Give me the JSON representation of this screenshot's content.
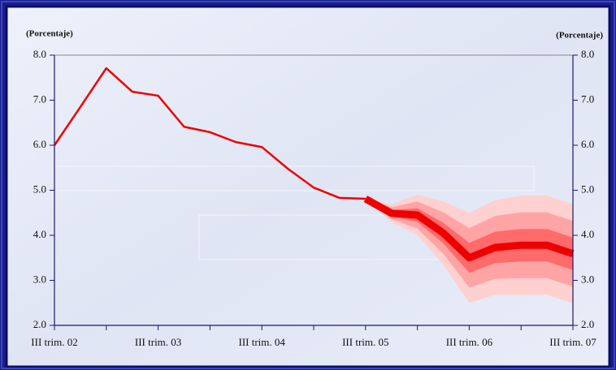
{
  "chart_data": {
    "type": "fan",
    "y_label": "(Porcentaje)",
    "y2_label": "(Porcentaje)",
    "categories": [
      "III trim. 02",
      null,
      null,
      null,
      "III trim. 03",
      null,
      null,
      null,
      "III trim. 04",
      null,
      null,
      null,
      "III trim. 05",
      null,
      null,
      null,
      "III trim. 06",
      null,
      null,
      null,
      "III trim. 07"
    ],
    "ylim": [
      2,
      8
    ],
    "yticks": [
      {
        "value": 2,
        "label": "2.0"
      },
      {
        "value": 3,
        "label": "3.0"
      },
      {
        "value": 4,
        "label": "4.0"
      },
      {
        "value": 5,
        "label": "5.0"
      },
      {
        "value": 6,
        "label": "6.0"
      },
      {
        "value": 7,
        "label": "7.0"
      },
      {
        "value": 8,
        "label": "8.0"
      }
    ],
    "y2lim": [
      2,
      8
    ],
    "y2ticks": [
      {
        "value": 2,
        "label": "2.0"
      },
      {
        "value": 3,
        "label": "3.0"
      },
      {
        "value": 4,
        "label": "4.0"
      },
      {
        "value": 5,
        "label": "5.0"
      },
      {
        "value": 6,
        "label": "6.0"
      },
      {
        "value": 7,
        "label": "7.0"
      },
      {
        "value": 8,
        "label": "8.0"
      }
    ],
    "line": {
      "color": "#ee0000",
      "forecast_start": 12,
      "values": [
        6.0,
        6.85,
        7.71,
        7.19,
        7.1,
        6.41,
        6.29,
        6.07,
        5.96,
        5.48,
        5.06,
        4.83,
        4.81,
        4.49,
        4.45,
        4.05,
        3.5,
        3.73,
        3.78,
        3.78,
        3.59
      ]
    },
    "fan": [
      {
        "color": "#ffd0d0",
        "lower": [
          null,
          null,
          null,
          null,
          null,
          null,
          null,
          null,
          null,
          null,
          null,
          null,
          4.81,
          4.29,
          4.0,
          3.35,
          2.5,
          2.68,
          2.68,
          2.68,
          2.49
        ],
        "upper": [
          null,
          null,
          null,
          null,
          null,
          null,
          null,
          null,
          null,
          null,
          null,
          null,
          4.81,
          4.69,
          4.9,
          4.75,
          4.5,
          4.78,
          4.88,
          4.88,
          4.69
        ]
      },
      {
        "color": "#ffa4a4",
        "lower": [
          null,
          null,
          null,
          null,
          null,
          null,
          null,
          null,
          null,
          null,
          null,
          null,
          4.81,
          4.36,
          4.15,
          3.59,
          2.84,
          3.03,
          3.05,
          3.05,
          2.86
        ],
        "upper": [
          null,
          null,
          null,
          null,
          null,
          null,
          null,
          null,
          null,
          null,
          null,
          null,
          4.81,
          4.62,
          4.75,
          4.51,
          4.16,
          4.43,
          4.51,
          4.51,
          4.32
        ]
      },
      {
        "color": "#ff6a6a",
        "lower": [
          null,
          null,
          null,
          null,
          null,
          null,
          null,
          null,
          null,
          null,
          null,
          null,
          4.81,
          4.42,
          4.3,
          3.82,
          3.17,
          3.38,
          3.42,
          3.42,
          3.23
        ],
        "upper": [
          null,
          null,
          null,
          null,
          null,
          null,
          null,
          null,
          null,
          null,
          null,
          null,
          4.81,
          4.56,
          4.6,
          4.28,
          3.83,
          4.08,
          4.14,
          4.14,
          3.95
        ]
      }
    ]
  }
}
